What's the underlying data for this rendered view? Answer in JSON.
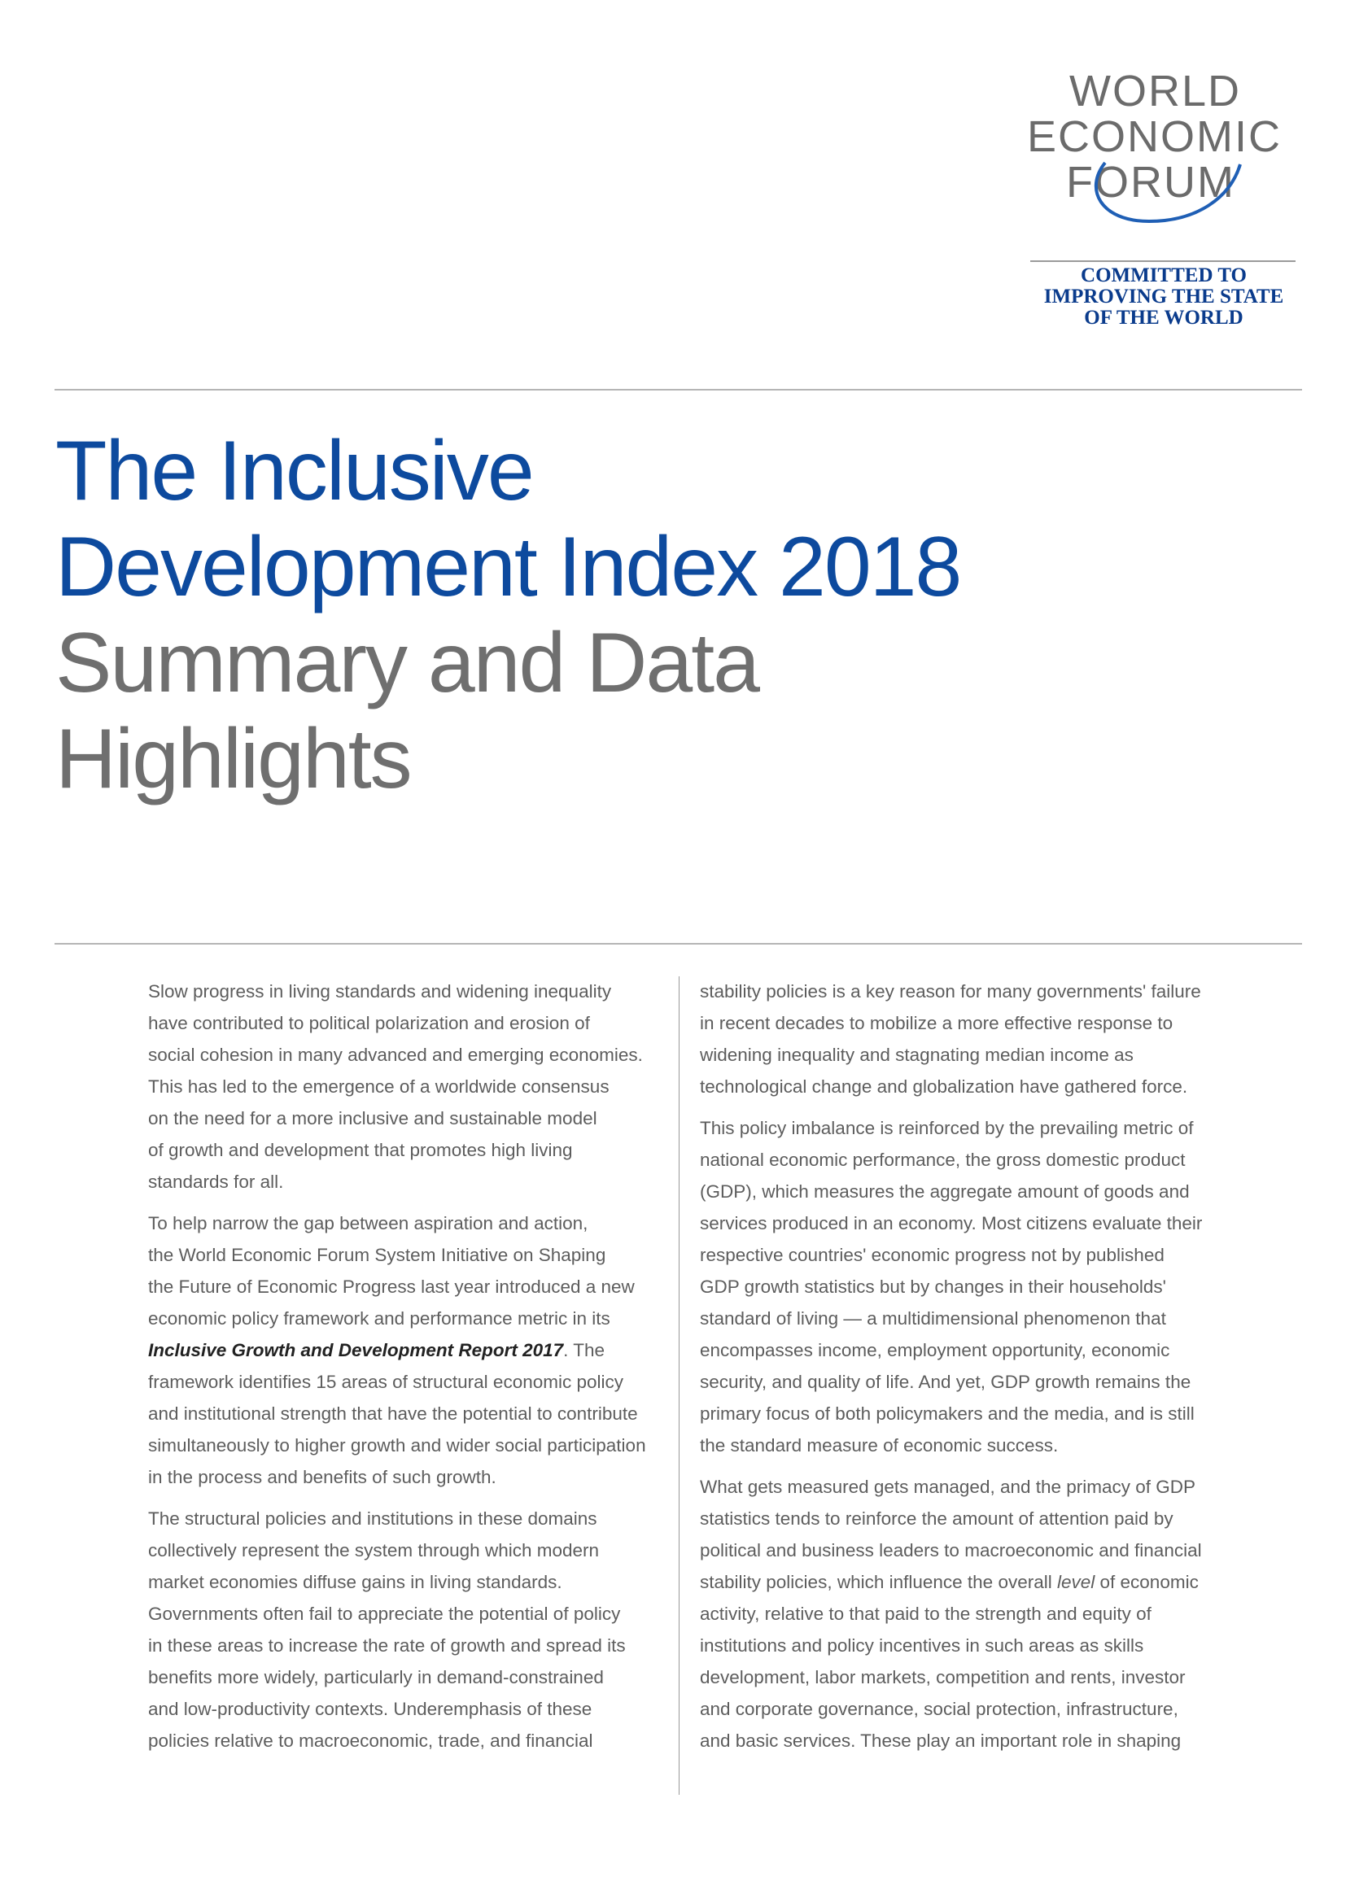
{
  "logo": {
    "lines": [
      "WORLD",
      "ECONOMIC",
      "FORUM"
    ],
    "colors": {
      "text": "#6b6b6b",
      "arc": "#1f5fb5"
    }
  },
  "tagline": {
    "lines": [
      "COMMITTED TO",
      "IMPROVING THE STATE",
      "OF THE WORLD"
    ]
  },
  "title": {
    "line1": "The Inclusive",
    "line2": "Development Index 2018",
    "line3": "Summary and Data",
    "line4": "Highlights"
  },
  "colors": {
    "title_blue": "#0d4a9e",
    "title_grey": "#6f6f6f",
    "tagline_blue": "#0a3b8c",
    "body_text": "#5d5d5d"
  },
  "body": {
    "p1": [
      "Slow progress in living standards and widening inequality",
      "have contributed to political polarization and erosion of",
      "social cohesion in many advanced and emerging economies.",
      "This has led to the emergence of a worldwide consensus",
      "on the need for a more inclusive and sustainable model",
      "of growth and development that promotes high living",
      "standards for all."
    ],
    "p2": {
      "lines_before": [
        "To help narrow the gap between aspiration and action,",
        "the World Economic Forum System Initiative on Shaping",
        "the Future of Economic Progress last year introduced a new",
        "economic policy framework and performance metric in its"
      ],
      "report_name": "Inclusive Growth and Development Report 2017",
      "report_after": ". The",
      "lines_after": [
        "framework identifies 15 areas of structural economic policy",
        "and institutional strength that have the potential to contribute",
        "simultaneously to higher growth and wider social participation",
        "in the process and benefits of such growth."
      ]
    },
    "p3": [
      "The structural policies and institutions in these domains",
      "collectively represent the system through which modern",
      "market economies diffuse gains in living standards.",
      "Governments often fail to appreciate the potential of policy",
      "in these areas to increase the rate of growth and spread its",
      "benefits more widely, particularly in demand-constrained",
      "and low-productivity contexts. Underemphasis of these",
      "policies relative to macroeconomic, trade, and financial"
    ],
    "p4": [
      "stability policies is a key reason for many governments' failure",
      "in recent decades to mobilize a more effective response to",
      "widening inequality and stagnating median income as",
      "technological change and globalization have gathered force."
    ],
    "p5": [
      "This policy imbalance is reinforced by the prevailing metric of",
      "national economic performance, the gross domestic product",
      "(GDP), which measures the aggregate amount of goods and",
      "services produced in an economy. Most citizens evaluate their",
      "respective countries' economic progress not by published",
      "GDP growth statistics but by changes in their households'",
      "standard of living — a multidimensional phenomenon that",
      "encompasses income, employment opportunity, economic",
      "security, and quality of life. And yet, GDP growth remains the",
      "primary focus of both policymakers and the media, and is still",
      "the standard measure of economic success."
    ],
    "p6": {
      "lines_before": [
        "What gets measured gets managed, and the primacy of GDP",
        "statistics tends to reinforce the amount of attention paid by",
        "political and business leaders to macroeconomic and financial"
      ],
      "level_before": "stability policies, which influence the overall ",
      "level_word": "level",
      "level_after": " of economic",
      "lines_after": [
        "activity, relative to that paid to the strength and equity of",
        "institutions and policy incentives in such areas as skills",
        "development, labor markets, competition and rents, investor",
        "and corporate governance, social protection, infrastructure,",
        "and basic services. These play an important role in shaping"
      ]
    }
  }
}
